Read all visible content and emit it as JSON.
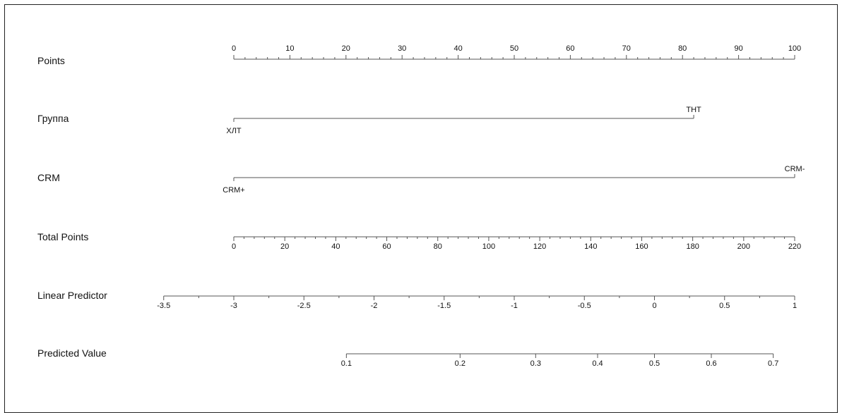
{
  "chart_data": {
    "type": "nomogram",
    "title": "",
    "rows": [
      {
        "id": "points",
        "label": "Points",
        "kind": "axis",
        "range": [
          0,
          100
        ],
        "major_ticks": [
          0,
          10,
          20,
          30,
          40,
          50,
          60,
          70,
          80,
          90,
          100
        ],
        "tick_labels": [
          "0",
          "10",
          "20",
          "30",
          "40",
          "50",
          "60",
          "70",
          "80",
          "90",
          "100"
        ],
        "minor_step": 2,
        "labels_side": "above"
      },
      {
        "id": "group",
        "label": "Группа",
        "kind": "categorical",
        "levels": [
          {
            "name": "ХЛТ",
            "points": 0,
            "label_side": "below"
          },
          {
            "name": "ТНТ",
            "points": 82,
            "label_side": "above"
          }
        ]
      },
      {
        "id": "crm",
        "label": "CRM",
        "kind": "categorical",
        "levels": [
          {
            "name": "CRM+",
            "points": 0,
            "label_side": "below"
          },
          {
            "name": "CRM-",
            "points": 100,
            "label_side": "above"
          }
        ]
      },
      {
        "id": "total",
        "label": "Total Points",
        "kind": "axis",
        "range": [
          0,
          220
        ],
        "major_ticks": [
          0,
          20,
          40,
          60,
          80,
          100,
          120,
          140,
          160,
          180,
          200,
          220
        ],
        "tick_labels": [
          "0",
          "20",
          "40",
          "60",
          "80",
          "100",
          "120",
          "140",
          "160",
          "180",
          "200",
          "220"
        ],
        "minor_step": 4,
        "labels_side": "below"
      },
      {
        "id": "lp",
        "label": "Linear Predictor",
        "kind": "axis",
        "range": [
          -3.5,
          1
        ],
        "major_ticks": [
          -3.5,
          -3,
          -2.5,
          -2,
          -1.5,
          -1,
          -0.5,
          0,
          0.5,
          1
        ],
        "tick_labels": [
          "-3.5",
          "-3",
          "-2.5",
          "-2",
          "-1.5",
          "-1",
          "-0.5",
          "0",
          "0.5",
          "1"
        ],
        "minor_step": 0.25,
        "labels_side": "below"
      },
      {
        "id": "pred",
        "label": "Predicted Value",
        "kind": "axis",
        "scale": "logit",
        "major_ticks": [
          0.1,
          0.2,
          0.3,
          0.4,
          0.5,
          0.6,
          0.7
        ],
        "tick_labels": [
          "0.1",
          "0.2",
          "0.3",
          "0.4",
          "0.5",
          "0.6",
          "0.7"
        ],
        "labels_side": "below"
      }
    ],
    "relations": {
      "total_points_per_points_unit": 1,
      "linear_predictor_at_total_0": -3,
      "linear_predictor_at_total_220": 1
    }
  }
}
